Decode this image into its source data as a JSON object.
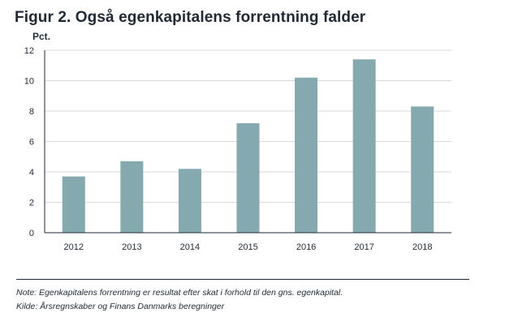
{
  "title": "Figur 2. Også egenkapitalens forrentning falder",
  "footer": {
    "note": "Note: Egenkapitalens forrentning er resultat efter skat i forhold til den gns. egenkapital.",
    "source": "Kilde: Årsregnskaber og Finans Danmarks beregninger"
  },
  "chart_data": {
    "type": "bar",
    "title": "Figur 2. Også egenkapitalens forrentning falder",
    "ylabel": "Pct.",
    "xlabel": "",
    "categories": [
      "2012",
      "2013",
      "2014",
      "2015",
      "2016",
      "2017",
      "2018"
    ],
    "values": [
      3.7,
      4.7,
      4.2,
      7.2,
      10.2,
      11.4,
      8.3
    ],
    "ylim": [
      0,
      12
    ],
    "yticks": [
      0,
      2,
      4,
      6,
      8,
      10,
      12
    ],
    "grid": true,
    "bar_color": "#84a9ae",
    "grid_color": "#d9d9d9",
    "axis_color": "#1f2a36"
  }
}
